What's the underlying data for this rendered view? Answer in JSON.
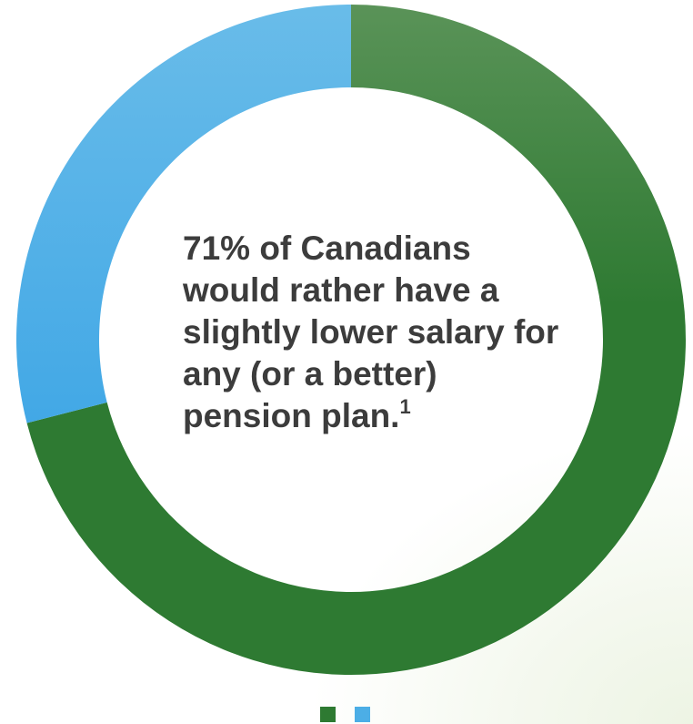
{
  "chart_data": {
    "type": "pie",
    "donut": true,
    "slices": [
      {
        "value": 71,
        "color": "#2e7a32"
      },
      {
        "value": 29,
        "color": "#4caee6"
      }
    ],
    "legend_placement": "bottom-center",
    "center_text": {
      "main": "71% of Canadians would rather have a slightly lower salary for any (or a better) pension plan.",
      "footnote": "1"
    }
  },
  "colors": {
    "green_top": "#5a9358",
    "green": "#2e7a32",
    "blue_top": "#69bce9",
    "blue": "#42a8e6"
  }
}
